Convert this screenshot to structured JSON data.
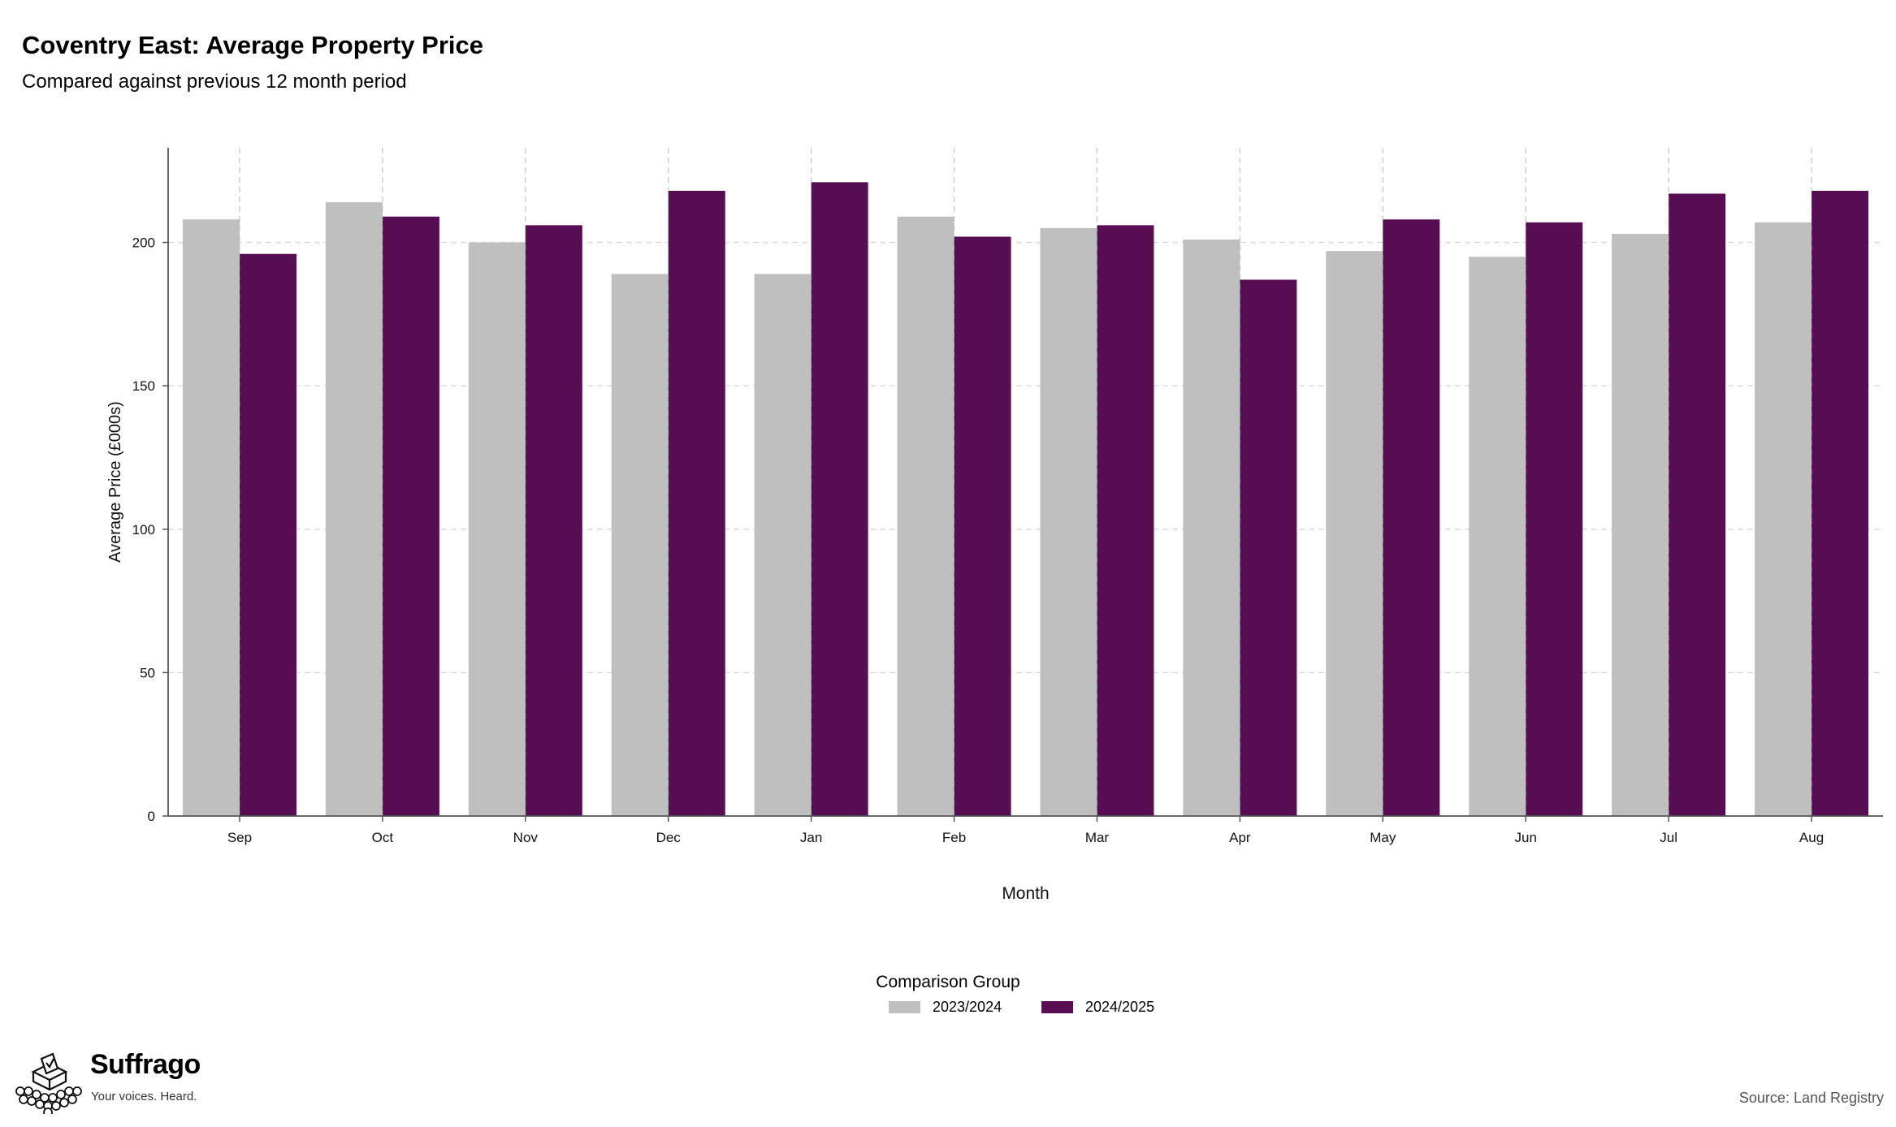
{
  "header": {
    "title": "Coventry East: Average Property Price",
    "subtitle": "Compared against previous 12 month period"
  },
  "chart_data": {
    "type": "bar",
    "title": "Coventry East: Average Property Price",
    "subtitle": "Compared against previous 12 month period",
    "xlabel": "Month",
    "ylabel": "Average Price (£000s)",
    "categories": [
      "Sep",
      "Oct",
      "Nov",
      "Dec",
      "Jan",
      "Feb",
      "Mar",
      "Apr",
      "May",
      "Jun",
      "Jul",
      "Aug"
    ],
    "series": [
      {
        "name": "2023/2024",
        "color": "#bfbfbf",
        "values": [
          208,
          214,
          200,
          189,
          189,
          209,
          205,
          201,
          197,
          195,
          203,
          207
        ]
      },
      {
        "name": "2024/2025",
        "color": "#560d52",
        "values": [
          196,
          209,
          206,
          218,
          221,
          202,
          206,
          187,
          208,
          207,
          217,
          218
        ]
      }
    ],
    "ylim": [
      0,
      233
    ],
    "yticks": [
      0,
      50,
      100,
      150,
      200
    ],
    "grid": true,
    "legend_title": "Comparison Group",
    "legend_position": "bottom"
  },
  "footer": {
    "source": "Source: Land Registry",
    "logo_name": "Suffrago",
    "logo_tagline": "Your voices. Heard."
  }
}
